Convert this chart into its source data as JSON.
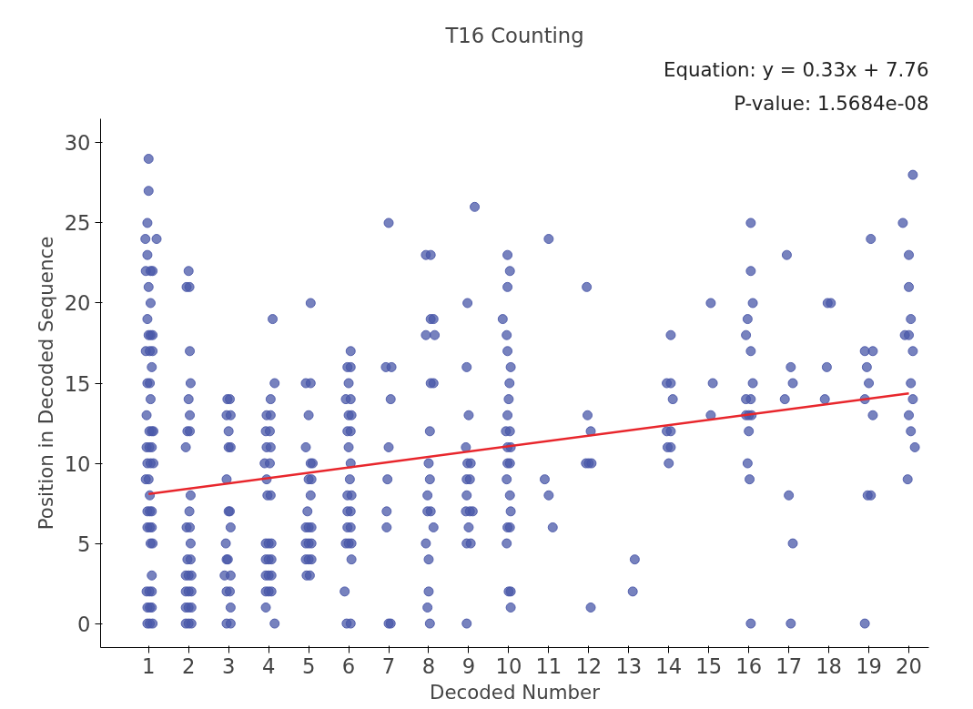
{
  "chart_data": {
    "type": "scatter",
    "title": "T16 Counting",
    "xlabel": "Decoded Number",
    "ylabel": "Position in Decoded Sequence",
    "annotations": [
      "Equation: y = 0.33x + 7.76",
      "P-value: 1.5684e-08"
    ],
    "xlim": [
      -0.2,
      20.5
    ],
    "ylim": [
      -1.5,
      31.5
    ],
    "xticks": [
      1,
      2,
      3,
      4,
      5,
      6,
      7,
      8,
      9,
      10,
      11,
      12,
      13,
      14,
      15,
      16,
      17,
      18,
      19,
      20
    ],
    "yticks": [
      0,
      5,
      10,
      15,
      20,
      25,
      30
    ],
    "grid": false,
    "series": [
      {
        "color": "#4a58a8",
        "marker": "circle",
        "x": [
          1.0,
          1.0,
          0.97,
          0.92,
          1.2,
          0.97,
          0.93,
          1.05,
          1.1,
          1.0,
          1.05,
          0.97,
          1.0,
          1.05,
          1.1,
          0.93,
          1.03,
          1.1,
          1.08,
          0.97,
          1.03,
          1.05,
          0.95,
          1.02,
          1.08,
          1.12,
          0.95,
          1.02,
          1.08,
          0.97,
          1.05,
          1.12,
          0.93,
          1.0,
          1.03,
          0.97,
          1.03,
          1.08,
          0.97,
          1.03,
          1.08,
          1.05,
          1.1,
          1.08,
          0.95,
          1.02,
          1.08,
          0.97,
          1.03,
          1.08,
          0.97,
          1.03,
          1.1,
          2.0,
          1.95,
          2.02,
          2.03,
          2.05,
          2.0,
          2.03,
          1.97,
          2.03,
          1.93,
          2.05,
          2.02,
          1.95,
          2.03,
          2.05,
          1.97,
          2.05,
          1.93,
          2.0,
          2.07,
          1.93,
          2.0,
          2.07,
          1.93,
          2.0,
          2.07,
          1.93,
          2.0,
          2.07,
          3.03,
          2.97,
          3.05,
          2.95,
          3.0,
          3.0,
          3.05,
          2.95,
          3.03,
          3.0,
          3.05,
          2.93,
          2.98,
          2.95,
          3.05,
          2.9,
          3.03,
          2.95,
          3.05,
          2.95,
          3.05,
          4.1,
          4.15,
          4.05,
          3.95,
          4.05,
          3.93,
          4.03,
          3.95,
          4.05,
          3.9,
          4.03,
          3.95,
          3.97,
          4.05,
          3.93,
          4.0,
          4.07,
          3.93,
          4.0,
          4.07,
          3.93,
          4.0,
          4.07,
          3.93,
          4.0,
          4.07,
          3.93,
          4.15,
          5.05,
          4.93,
          5.05,
          5.0,
          4.93,
          5.05,
          5.1,
          5.0,
          5.07,
          5.05,
          4.97,
          4.93,
          5.0,
          5.07,
          4.93,
          5.0,
          5.07,
          4.93,
          5.0,
          5.07,
          4.95,
          5.03,
          6.05,
          5.97,
          6.05,
          6.0,
          5.93,
          6.05,
          6.0,
          6.07,
          5.97,
          6.05,
          6.0,
          6.05,
          6.03,
          6.07,
          5.97,
          6.05,
          5.97,
          6.05,
          5.97,
          6.07,
          5.93,
          6.0,
          6.07,
          5.9,
          6.05,
          5.95,
          7.0,
          6.93,
          7.07,
          7.05,
          7.0,
          6.97,
          6.95,
          6.95,
          7.0,
          7.05,
          7.93,
          8.05,
          8.05,
          8.12,
          7.93,
          8.15,
          8.05,
          8.12,
          8.03,
          8.0,
          8.03,
          7.97,
          8.05,
          7.97,
          8.12,
          7.93,
          8.0,
          8.0,
          7.97,
          8.03,
          9.15,
          8.97,
          8.95,
          9.0,
          8.93,
          8.97,
          9.05,
          8.95,
          9.03,
          8.95,
          8.93,
          9.03,
          9.1,
          9.0,
          8.95,
          9.05,
          8.95,
          9.97,
          10.03,
          9.97,
          9.85,
          9.95,
          9.97,
          10.05,
          10.02,
          10.0,
          9.97,
          9.93,
          10.03,
          9.97,
          10.05,
          9.97,
          10.03,
          9.95,
          10.03,
          10.05,
          9.97,
          10.03,
          9.95,
          10.0,
          10.05,
          10.05,
          11.0,
          10.9,
          11.0,
          11.1,
          11.95,
          11.97,
          12.05,
          11.93,
          12.0,
          12.07,
          12.05,
          13.15,
          13.1,
          14.05,
          13.95,
          14.05,
          14.1,
          13.95,
          14.05,
          13.97,
          14.05,
          14.0,
          15.05,
          15.1,
          15.05,
          16.05,
          16.05,
          16.1,
          15.97,
          15.93,
          16.05,
          16.1,
          15.93,
          16.05,
          15.93,
          16.0,
          16.07,
          16.0,
          15.97,
          16.02,
          16.05,
          16.95,
          17.05,
          17.1,
          16.9,
          17.0,
          17.1,
          17.05,
          17.97,
          18.05,
          17.95,
          17.9,
          19.05,
          18.9,
          19.1,
          18.95,
          19.0,
          18.9,
          19.1,
          18.97,
          19.05,
          18.9,
          20.1,
          19.85,
          20.0,
          20.0,
          20.05,
          19.9,
          20.0,
          20.1,
          20.05,
          20.1,
          20.0,
          20.05,
          20.15,
          19.97
        ],
        "values": [
          29,
          27,
          25,
          24,
          24,
          23,
          22,
          22,
          22,
          21,
          20,
          19,
          18,
          18,
          18,
          17,
          17,
          17,
          16,
          15,
          15,
          14,
          13,
          12,
          12,
          12,
          11,
          11,
          11,
          10,
          10,
          10,
          9,
          9,
          8,
          7,
          7,
          7,
          6,
          6,
          6,
          5,
          5,
          3,
          2,
          2,
          2,
          1,
          1,
          1,
          0,
          0,
          0,
          22,
          21,
          21,
          17,
          15,
          14,
          13,
          12,
          12,
          11,
          8,
          7,
          6,
          6,
          5,
          4,
          4,
          3,
          3,
          3,
          2,
          2,
          2,
          1,
          1,
          1,
          0,
          0,
          0,
          14,
          14,
          13,
          13,
          12,
          11,
          11,
          9,
          7,
          7,
          6,
          5,
          4,
          4,
          3,
          3,
          2,
          2,
          1,
          0,
          0,
          19,
          15,
          14,
          13,
          13,
          12,
          12,
          11,
          11,
          10,
          10,
          9,
          8,
          8,
          5,
          5,
          5,
          4,
          4,
          4,
          3,
          3,
          3,
          2,
          2,
          2,
          1,
          0,
          20,
          15,
          15,
          13,
          11,
          10,
          10,
          9,
          9,
          8,
          7,
          6,
          6,
          6,
          5,
          5,
          5,
          4,
          4,
          4,
          3,
          3,
          17,
          16,
          16,
          15,
          14,
          14,
          13,
          13,
          12,
          12,
          11,
          10,
          9,
          8,
          8,
          7,
          7,
          6,
          6,
          5,
          5,
          5,
          4,
          2,
          0,
          0,
          25,
          16,
          16,
          14,
          11,
          9,
          7,
          6,
          0,
          0,
          23,
          23,
          19,
          19,
          18,
          18,
          15,
          15,
          12,
          10,
          9,
          8,
          7,
          7,
          6,
          5,
          4,
          2,
          1,
          0,
          26,
          20,
          16,
          13,
          11,
          10,
          10,
          9,
          9,
          8,
          7,
          7,
          7,
          6,
          5,
          5,
          0,
          23,
          22,
          21,
          19,
          18,
          17,
          16,
          15,
          14,
          13,
          12,
          12,
          11,
          11,
          10,
          10,
          9,
          8,
          7,
          6,
          6,
          5,
          2,
          2,
          1,
          24,
          9,
          8,
          6,
          21,
          13,
          12,
          10,
          10,
          10,
          1,
          4,
          2,
          18,
          15,
          15,
          14,
          12,
          12,
          11,
          11,
          10,
          20,
          15,
          13,
          25,
          22,
          20,
          19,
          18,
          17,
          15,
          14,
          14,
          13,
          13,
          13,
          12,
          10,
          9,
          0,
          23,
          16,
          15,
          14,
          8,
          5,
          0,
          20,
          20,
          16,
          14,
          24,
          17,
          17,
          16,
          15,
          14,
          13,
          8,
          8,
          0,
          28,
          25,
          23,
          21,
          19,
          18,
          18,
          17,
          15,
          14,
          13,
          12,
          11,
          9
        ]
      },
      {
        "type": "line",
        "color": "#e8262c",
        "x": [
          1,
          20
        ],
        "values": [
          8.09,
          14.36
        ]
      }
    ]
  }
}
